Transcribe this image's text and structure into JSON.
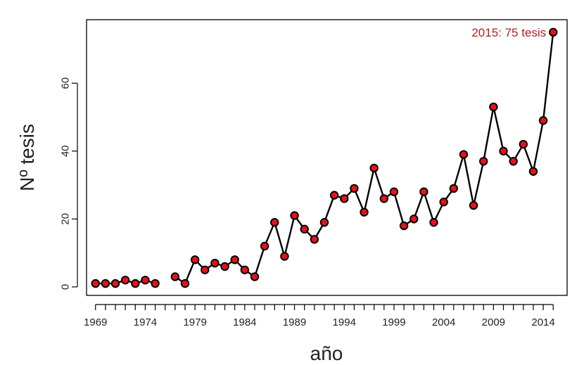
{
  "chart_data": {
    "type": "line",
    "title": "",
    "xlabel": "año",
    "ylabel": "Nº tesis",
    "xlim": [
      1968.1,
      2016.4
    ],
    "ylim": [
      -2.5,
      78.7
    ],
    "x_ticks": [
      1969,
      1974,
      1979,
      1984,
      1989,
      1994,
      1999,
      2004,
      2009,
      2014
    ],
    "x_minor_ticks": [
      1969,
      1970,
      1971,
      1972,
      1973,
      1974,
      1975,
      1976,
      1977,
      1978,
      1979,
      1980,
      1981,
      1982,
      1983,
      1984,
      1985,
      1986,
      1987,
      1988,
      1989,
      1990,
      1991,
      1992,
      1993,
      1994,
      1995,
      1996,
      1997,
      1998,
      1999,
      2000,
      2001,
      2002,
      2003,
      2004,
      2005,
      2006,
      2007,
      2008,
      2009,
      2010,
      2011,
      2012,
      2013,
      2014,
      2015
    ],
    "y_ticks": [
      0,
      20,
      40,
      60
    ],
    "grid": false,
    "legend": "none",
    "series": [
      {
        "segments": [
          {
            "x": [
              1969,
              1970,
              1971,
              1972,
              1973,
              1974,
              1975
            ],
            "y": [
              1,
              1,
              1,
              2,
              1,
              2,
              1
            ]
          },
          {
            "x": [
              1977,
              1978,
              1979,
              1980,
              1981,
              1982,
              1983,
              1984,
              1985,
              1986,
              1987,
              1988,
              1989,
              1990,
              1991,
              1992,
              1993,
              1994,
              1995,
              1996,
              1997,
              1998,
              1999,
              2000,
              2001,
              2002,
              2003,
              2004,
              2005,
              2006,
              2007,
              2008,
              2009,
              2010,
              2011,
              2012,
              2013,
              2014,
              2015
            ],
            "y": [
              3,
              1,
              8,
              5,
              7,
              6,
              8,
              5,
              3,
              12,
              19,
              9,
              21,
              17,
              14,
              19,
              27,
              26,
              29,
              22,
              35,
              26,
              28,
              18,
              20,
              28,
              19,
              25,
              29,
              39,
              24,
              37,
              53,
              40,
              37,
              42,
              34,
              49,
              75
            ]
          }
        ],
        "line_color": "#000000",
        "marker_fill": "#e8101a",
        "marker_edge": "#000000"
      }
    ],
    "annotations": [
      {
        "text": "2015: 75 tesis",
        "x": 2015,
        "y": 75,
        "color": "#b22222",
        "position": "left"
      }
    ]
  }
}
